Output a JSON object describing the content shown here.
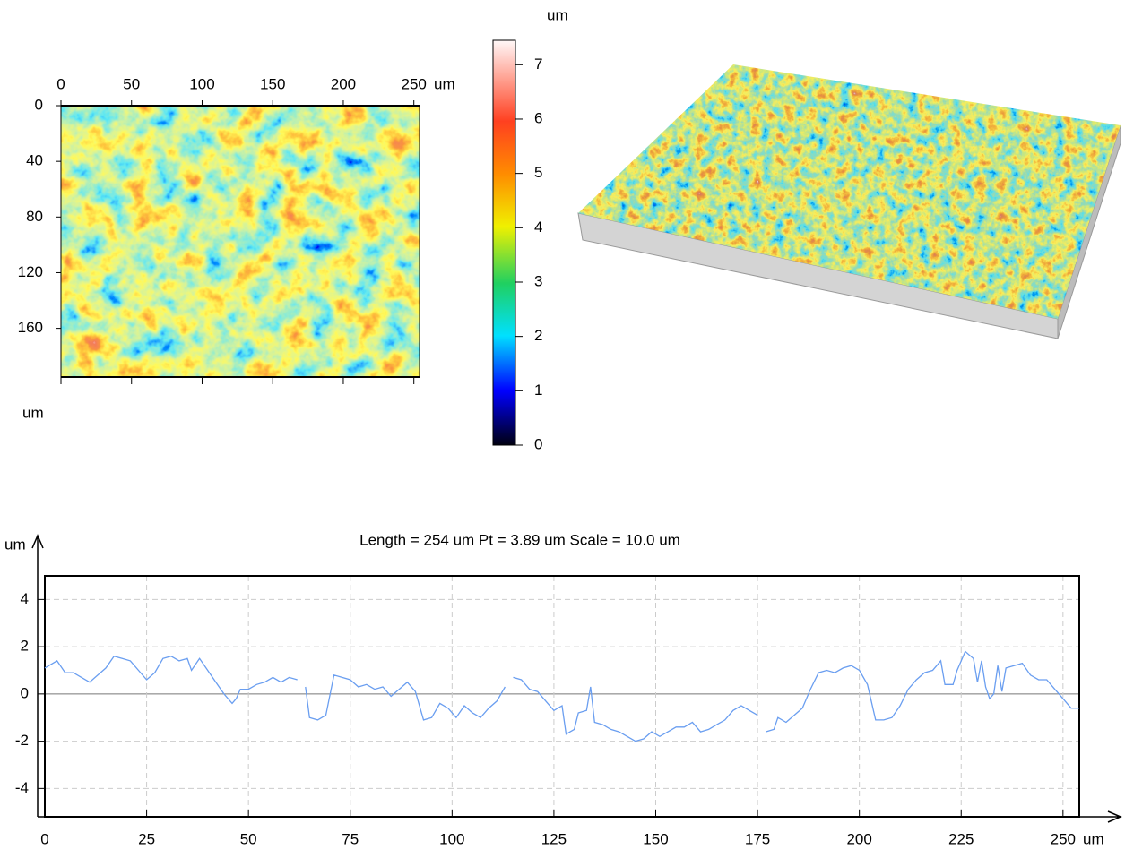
{
  "chart_data": [
    {
      "type": "heatmap-image",
      "xlim": [
        0,
        254
      ],
      "ylim": [
        0,
        195
      ],
      "xticks": [
        0,
        50,
        100,
        150,
        200,
        250
      ],
      "yticks": [
        0,
        40,
        80,
        120,
        160
      ],
      "x_unit": "um",
      "y_unit": "um"
    },
    {
      "type": "colorbar",
      "ylim": [
        0,
        7.45
      ],
      "yticks": [
        0,
        1,
        2,
        3,
        4,
        5,
        6,
        7
      ],
      "unit": "um"
    },
    {
      "type": "line",
      "title": "Length = 254 um  Pt = 3.89 um  Scale = 10.0 um",
      "y_label": "um",
      "x_label": "um",
      "xlim": [
        0,
        254
      ],
      "ylim": [
        -5.2,
        5
      ],
      "xticks": [
        0,
        25,
        50,
        75,
        100,
        125,
        150,
        175,
        200,
        225,
        250
      ],
      "yticks": [
        -4,
        -2,
        0,
        2,
        4
      ],
      "grid": true,
      "x": [
        0,
        2,
        3,
        5,
        7,
        9,
        11,
        13,
        15,
        17,
        19,
        21,
        23,
        25,
        27,
        29,
        31,
        33,
        35,
        36,
        38,
        40,
        42,
        44,
        46,
        47,
        48,
        50,
        52,
        54,
        56,
        58,
        60,
        62,
        63,
        64,
        65,
        67,
        69,
        71,
        73,
        75,
        77,
        79,
        81,
        83,
        85,
        87,
        89,
        91,
        93,
        95,
        97,
        99,
        101,
        103,
        105,
        107,
        109,
        111,
        113,
        114,
        115,
        117,
        119,
        121,
        123,
        125,
        127,
        128,
        130,
        131,
        133,
        134,
        135,
        137,
        139,
        141,
        143,
        145,
        147,
        149,
        151,
        153,
        155,
        157,
        159,
        161,
        163,
        165,
        167,
        169,
        171,
        173,
        175,
        176,
        177,
        179,
        180,
        182,
        184,
        186,
        188,
        190,
        192,
        194,
        196,
        198,
        200,
        202,
        204,
        206,
        208,
        210,
        212,
        214,
        216,
        218,
        220,
        221,
        223,
        224,
        226,
        228,
        229,
        230,
        231,
        232,
        233,
        234,
        235,
        236,
        238,
        240,
        242,
        244,
        246,
        248,
        250,
        252,
        254
      ],
      "series": [
        {
          "color": "#6a9ef0",
          "values": [
            1.1,
            1.3,
            1.4,
            0.9,
            0.9,
            0.7,
            0.5,
            0.8,
            1.1,
            1.6,
            1.5,
            1.4,
            1.0,
            0.6,
            0.9,
            1.5,
            1.6,
            1.4,
            1.5,
            1.0,
            1.5,
            1.0,
            0.5,
            0.0,
            -0.4,
            -0.2,
            0.2,
            0.2,
            0.4,
            0.5,
            0.7,
            0.5,
            0.7,
            0.6,
            null,
            0.3,
            -1.0,
            -1.1,
            -0.9,
            0.8,
            0.7,
            0.6,
            0.3,
            0.4,
            0.2,
            0.3,
            -0.1,
            0.2,
            0.5,
            0.1,
            -1.1,
            -1.0,
            -0.4,
            -0.6,
            -1.0,
            -0.5,
            -0.8,
            -1.0,
            -0.6,
            -0.3,
            0.3,
            null,
            0.7,
            0.6,
            0.2,
            0.1,
            -0.3,
            -0.7,
            -0.5,
            -1.7,
            -1.5,
            -0.8,
            -0.7,
            0.3,
            -1.2,
            -1.3,
            -1.5,
            -1.6,
            -1.8,
            -2.0,
            -1.9,
            -1.6,
            -1.8,
            -1.6,
            -1.4,
            -1.4,
            -1.2,
            -1.6,
            -1.5,
            -1.3,
            -1.1,
            -0.7,
            -0.5,
            -0.7,
            -0.9,
            null,
            -1.6,
            -1.5,
            -1.0,
            -1.2,
            -0.9,
            -0.6,
            0.2,
            0.9,
            1.0,
            0.9,
            1.1,
            1.2,
            1.0,
            0.4,
            -1.1,
            -1.1,
            -1.0,
            -0.5,
            0.2,
            0.6,
            0.9,
            1.0,
            1.4,
            0.4,
            0.4,
            1.0,
            1.8,
            1.5,
            0.5,
            1.4,
            0.3,
            -0.2,
            0.0,
            1.2,
            0.1,
            1.1,
            1.2,
            1.3,
            0.8,
            0.6,
            0.6,
            0.2,
            -0.2,
            -0.6,
            -0.6
          ]
        }
      ]
    }
  ]
}
